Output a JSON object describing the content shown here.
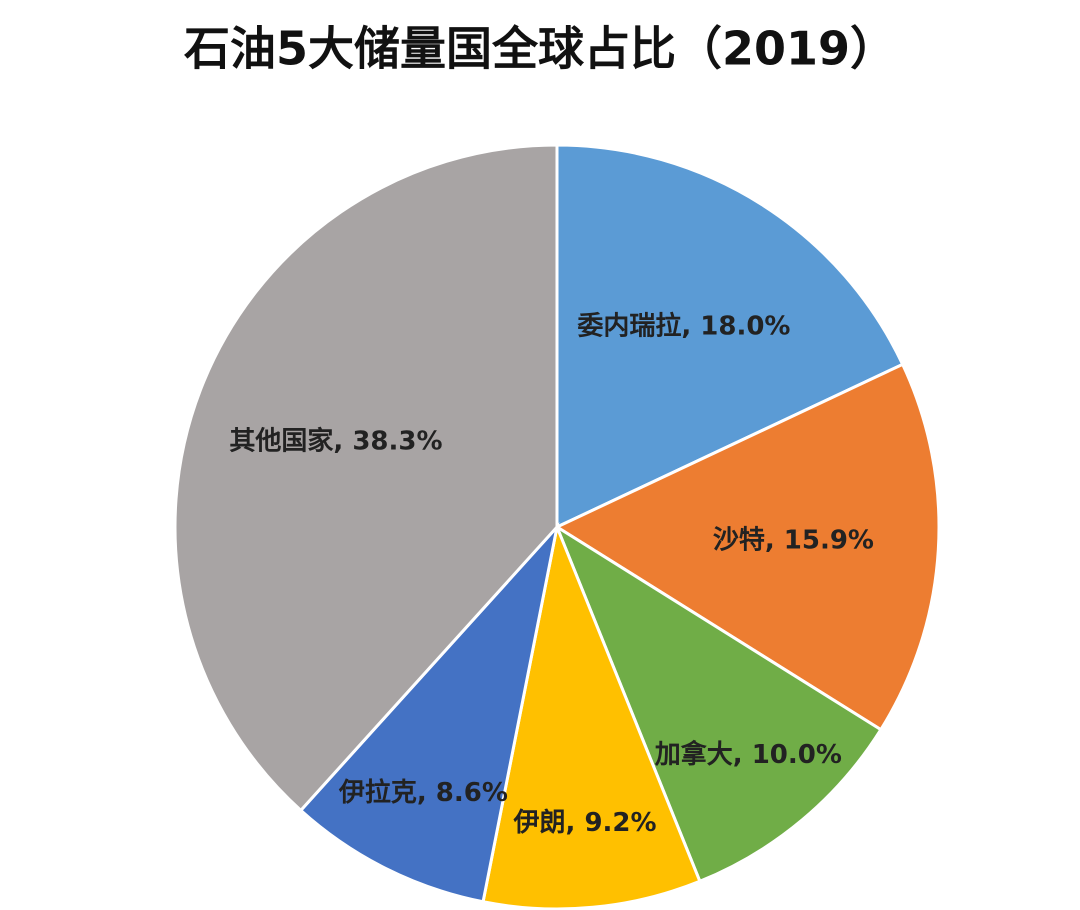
{
  "chart_data": {
    "type": "pie",
    "title": "石油5大储量国全球占比（2019）",
    "values": [
      18.0,
      15.9,
      10.0,
      9.2,
      8.6,
      38.3
    ],
    "value_labels": [
      "委内瑞拉, 18.0%",
      "沙特, 15.9%",
      "加拿大, 10.0%",
      "伊朗, 9.2%",
      "伊拉克, 8.6%",
      "其他国家, 38.3%"
    ],
    "colors": [
      "#5b9bd5",
      "#ed7d31",
      "#70ad47",
      "#ffc000",
      "#4472c4",
      "#a8a4a4"
    ]
  }
}
